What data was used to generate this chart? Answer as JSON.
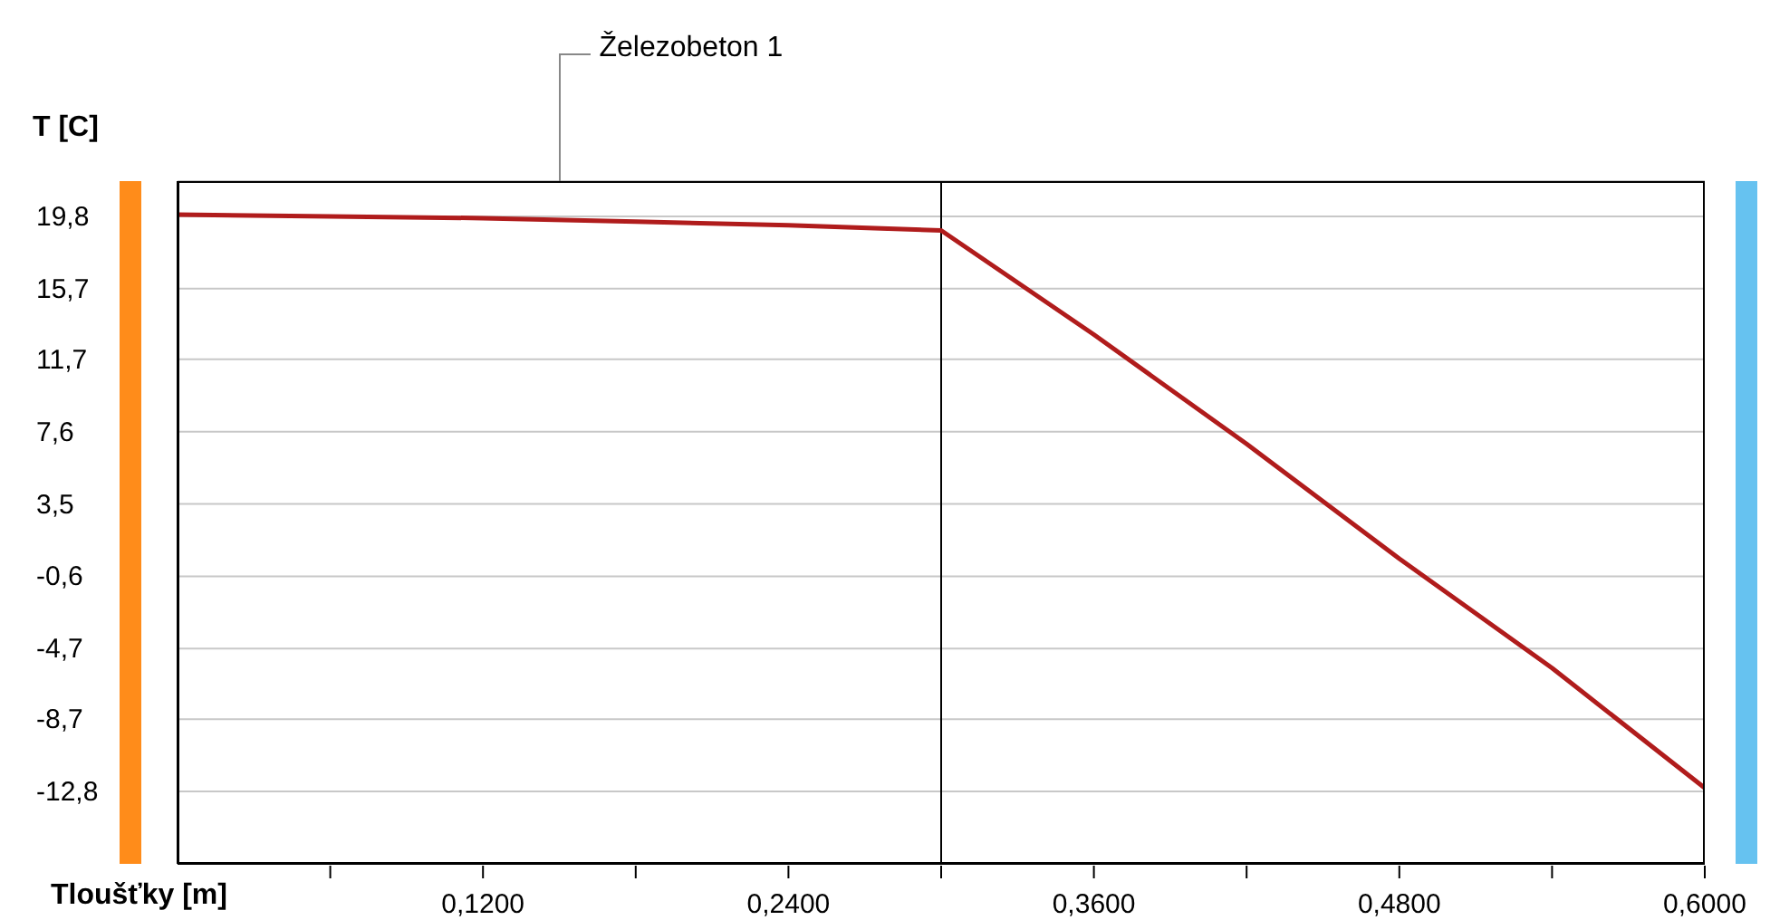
{
  "chart_data": {
    "type": "line",
    "xlabel": "Tloušťky [m]",
    "ylabel": "T [C]",
    "annotations": [
      "Železobeton 1"
    ],
    "xlim": [
      0,
      0.6
    ],
    "ylim": [
      -16.9,
      21.8
    ],
    "xticks": [
      {
        "value": 0.06,
        "label": null
      },
      {
        "value": 0.12,
        "label": "0,1200"
      },
      {
        "value": 0.18,
        "label": null
      },
      {
        "value": 0.24,
        "label": "0,2400"
      },
      {
        "value": 0.3,
        "label": null
      },
      {
        "value": 0.36,
        "label": "0,3600"
      },
      {
        "value": 0.42,
        "label": null
      },
      {
        "value": 0.48,
        "label": "0,4800"
      },
      {
        "value": 0.54,
        "label": null
      },
      {
        "value": 0.6,
        "label": "0,6000"
      }
    ],
    "yticks": [
      {
        "value": 19.8,
        "label": "19,8"
      },
      {
        "value": 15.7,
        "label": "15,7"
      },
      {
        "value": 11.7,
        "label": "11,7"
      },
      {
        "value": 7.6,
        "label": "7,6"
      },
      {
        "value": 3.5,
        "label": "3,5"
      },
      {
        "value": -0.6,
        "label": "-0,6"
      },
      {
        "value": -4.7,
        "label": "-4,7"
      },
      {
        "value": -8.7,
        "label": "-8,7"
      },
      {
        "value": -12.8,
        "label": "-12,8"
      }
    ],
    "grid": "y",
    "marker": "none",
    "line_style": "solid",
    "ref_lines": [
      {
        "axis": "x",
        "value": 0.3,
        "label": null,
        "color": "#000000"
      }
    ],
    "series": [
      {
        "color": "#b01c1c",
        "x": [
          0,
          0.06,
          0.12,
          0.18,
          0.24,
          0.3,
          0.36,
          0.42,
          0.48,
          0.54,
          0.6
        ],
        "values": [
          19.9,
          19.8,
          19.7,
          19.5,
          19.3,
          19.0,
          13.1,
          6.9,
          0.4,
          -5.8,
          -12.6
        ]
      }
    ]
  }
}
